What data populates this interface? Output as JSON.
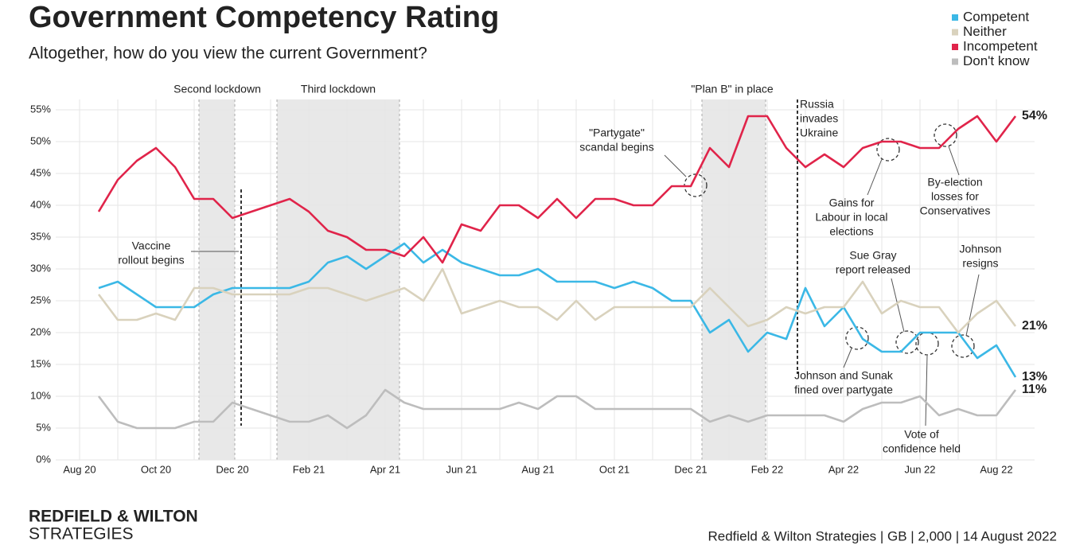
{
  "chart_data": {
    "type": "line",
    "title": "Government Competency Rating",
    "subtitle": "Altogether, how do you view the current Government?",
    "categories": [
      "Aug 20",
      null,
      null,
      null,
      "Oct 20",
      null,
      null,
      null,
      "Dec 20",
      null,
      null,
      null,
      "Feb 21",
      null,
      null,
      null,
      "Apr 21",
      null,
      null,
      null,
      "Jun 21",
      null,
      null,
      null,
      "Aug 21",
      null,
      null,
      null,
      "Oct 21",
      null,
      null,
      null,
      "Dec 21",
      null,
      null,
      null,
      "Feb 22",
      null,
      null,
      null,
      "Apr 22",
      null,
      null,
      null,
      "Jun 22",
      null,
      null,
      null,
      "Aug 22",
      null
    ],
    "series": [
      {
        "name": "Competent",
        "color": "#3bb8e6",
        "values": [
          null,
          27,
          28,
          26,
          24,
          24,
          24,
          26,
          27,
          27,
          27,
          27,
          28,
          31,
          32,
          30,
          32,
          34,
          31,
          33,
          31,
          30,
          29,
          29,
          30,
          28,
          28,
          28,
          27,
          28,
          27,
          25,
          25,
          20,
          22,
          17,
          20,
          19,
          27,
          21,
          24,
          19,
          17,
          17,
          20,
          20,
          20,
          16,
          18,
          13
        ],
        "value_labels": [
          null,
          null,
          null,
          null,
          null,
          null,
          null,
          null,
          null,
          null,
          null,
          null,
          null,
          null,
          null,
          null,
          null,
          null,
          null,
          null,
          null,
          null,
          null,
          null,
          null,
          null,
          null,
          null,
          null,
          null,
          null,
          null,
          null,
          null,
          null,
          null,
          null,
          null,
          null,
          null,
          null,
          null,
          null,
          null,
          null,
          null,
          null,
          null,
          null,
          "13%"
        ]
      },
      {
        "name": "Neither",
        "color": "#d9d2bd",
        "values": [
          null,
          26,
          22,
          22,
          23,
          22,
          27,
          27,
          26,
          26,
          26,
          26,
          27,
          27,
          26,
          25,
          26,
          27,
          25,
          30,
          23,
          24,
          25,
          24,
          24,
          22,
          25,
          22,
          24,
          24,
          24,
          24,
          24,
          27,
          24,
          21,
          22,
          24,
          23,
          24,
          24,
          28,
          23,
          25,
          24,
          24,
          20,
          23,
          25,
          21
        ],
        "value_labels": [
          null,
          null,
          null,
          null,
          null,
          null,
          null,
          null,
          null,
          null,
          null,
          null,
          null,
          null,
          null,
          null,
          null,
          null,
          null,
          null,
          null,
          null,
          null,
          null,
          null,
          null,
          null,
          null,
          null,
          null,
          null,
          null,
          null,
          null,
          null,
          null,
          null,
          null,
          null,
          null,
          null,
          null,
          null,
          null,
          null,
          null,
          null,
          null,
          null,
          "21%"
        ]
      },
      {
        "name": "Incompetent",
        "color": "#e0244a",
        "values": [
          null,
          39,
          44,
          47,
          49,
          46,
          41,
          41,
          38,
          39,
          40,
          41,
          39,
          36,
          35,
          33,
          33,
          32,
          35,
          31,
          37,
          36,
          40,
          40,
          38,
          41,
          38,
          41,
          41,
          40,
          40,
          43,
          43,
          49,
          46,
          54,
          54,
          49,
          46,
          48,
          46,
          49,
          50,
          50,
          49,
          49,
          52,
          54,
          50,
          54
        ],
        "value_labels": [
          null,
          null,
          null,
          null,
          null,
          null,
          null,
          null,
          null,
          null,
          null,
          null,
          null,
          null,
          null,
          null,
          null,
          null,
          null,
          null,
          null,
          null,
          null,
          null,
          null,
          null,
          null,
          null,
          null,
          null,
          null,
          null,
          null,
          null,
          null,
          null,
          null,
          null,
          null,
          null,
          null,
          null,
          null,
          null,
          null,
          null,
          null,
          null,
          null,
          "54%"
        ]
      },
      {
        "name": "Don't know",
        "color": "#bdbdbd",
        "values": [
          null,
          10,
          6,
          5,
          5,
          5,
          6,
          6,
          9,
          8,
          7,
          6,
          6,
          7,
          5,
          7,
          11,
          9,
          8,
          8,
          8,
          8,
          8,
          9,
          8,
          10,
          10,
          8,
          8,
          8,
          8,
          8,
          8,
          6,
          7,
          6,
          7,
          7,
          7,
          7,
          6,
          8,
          9,
          9,
          10,
          7,
          8,
          7,
          7,
          11
        ],
        "value_labels": [
          null,
          null,
          null,
          null,
          null,
          null,
          null,
          null,
          null,
          null,
          null,
          null,
          null,
          null,
          null,
          null,
          null,
          null,
          null,
          null,
          null,
          null,
          null,
          null,
          null,
          null,
          null,
          null,
          null,
          null,
          null,
          null,
          null,
          null,
          null,
          null,
          null,
          null,
          null,
          null,
          null,
          null,
          null,
          null,
          null,
          null,
          null,
          null,
          null,
          "11%"
        ]
      }
    ],
    "ylim": [
      0,
      55
    ],
    "yticks": [
      {
        "value": 0,
        "label": "0%"
      },
      {
        "value": 5,
        "label": "5%"
      },
      {
        "value": 10,
        "label": "10%"
      },
      {
        "value": 15,
        "label": "15%"
      },
      {
        "value": 20,
        "label": "20%"
      },
      {
        "value": 25,
        "label": "25%"
      },
      {
        "value": 30,
        "label": "30%"
      },
      {
        "value": 35,
        "label": "35%"
      },
      {
        "value": 40,
        "label": "40%"
      },
      {
        "value": 45,
        "label": "45%"
      },
      {
        "value": 50,
        "label": "50%"
      },
      {
        "value": 55,
        "label": "55%"
      }
    ],
    "grid": true,
    "legend": "top-right",
    "annotations": [
      {
        "lines": [
          "Second lockdown"
        ]
      },
      {
        "lines": [
          "Third lockdown"
        ]
      },
      {
        "lines": [
          "\"Plan B\" in place"
        ]
      },
      {
        "lines": [
          "Russia",
          "invades",
          "Ukraine"
        ]
      },
      {
        "lines": [
          "\"Partygate\"",
          "scandal begins"
        ]
      },
      {
        "lines": [
          "Vaccine",
          "rollout begins"
        ]
      },
      {
        "lines": [
          "Gains for",
          "Labour in local",
          "elections"
        ]
      },
      {
        "lines": [
          "By-election",
          "losses for",
          "Conservatives"
        ]
      },
      {
        "lines": [
          "Sue Gray",
          "report released"
        ]
      },
      {
        "lines": [
          "Johnson",
          "resigns"
        ]
      },
      {
        "lines": [
          "Johnson and Sunak",
          "fined over partygate"
        ]
      },
      {
        "lines": [
          "Vote of",
          "confidence held"
        ]
      }
    ],
    "brand": [
      "REDFIELD & WILTON",
      "STRATEGIES"
    ],
    "source": "Redfield & Wilton Strategies | GB | 2,000 | 14 August 2022"
  }
}
